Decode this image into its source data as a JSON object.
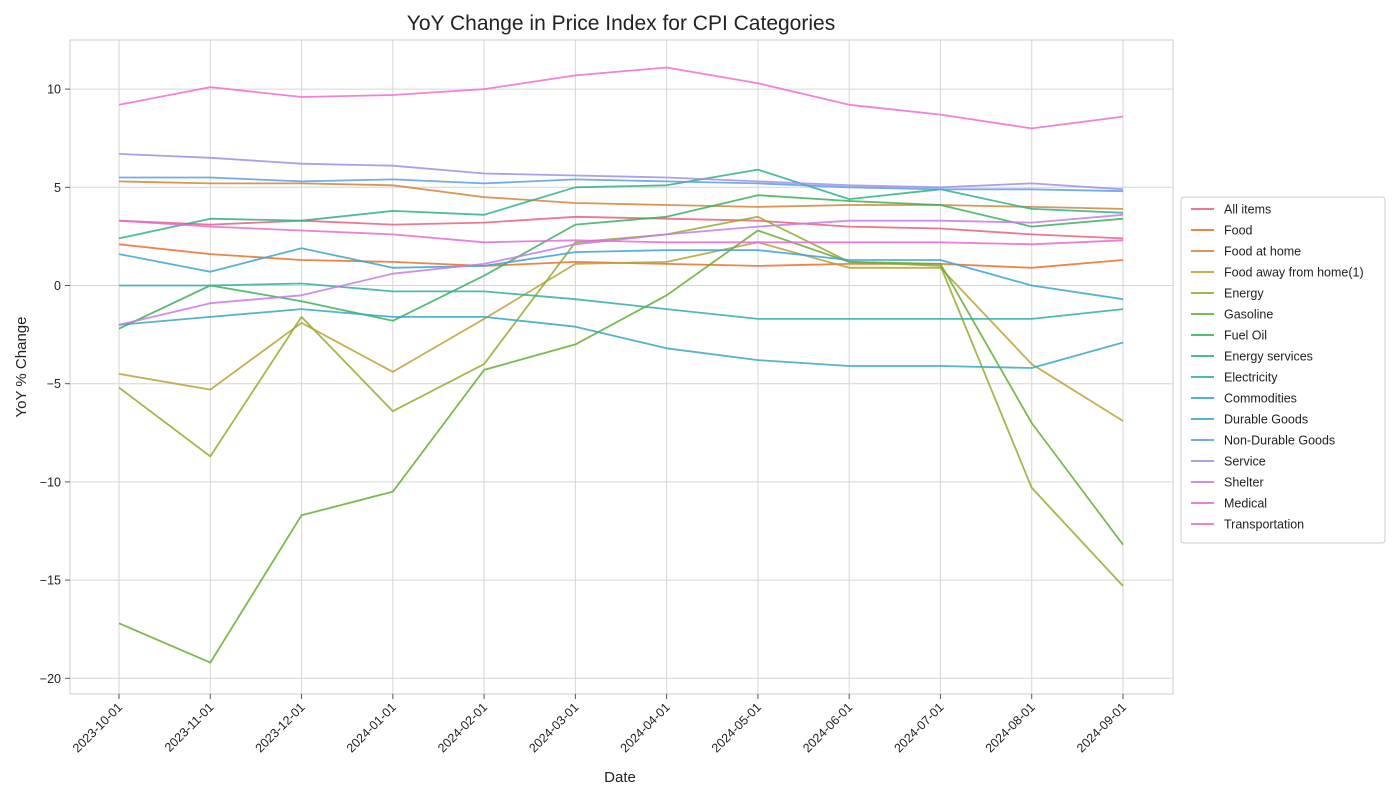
{
  "chart_data": {
    "type": "line",
    "title": "YoY Change in Price Index for CPI Categories",
    "xlabel": "Date",
    "ylabel": "YoY % Change",
    "ylim": [
      -20.8,
      12.5
    ],
    "yticks": [
      10,
      5,
      0,
      -5,
      -10,
      -15,
      -20
    ],
    "ytick_labels": [
      "10",
      "5",
      "0",
      "−5",
      "−10",
      "−15",
      "−20"
    ],
    "grid": true,
    "legend_position": "right-center",
    "x": [
      "2023-10-01",
      "2023-11-01",
      "2023-12-01",
      "2024-01-01",
      "2024-02-01",
      "2024-03-01",
      "2024-04-01",
      "2024-05-01",
      "2024-06-01",
      "2024-07-01",
      "2024-08-01",
      "2024-09-01"
    ],
    "series": [
      {
        "name": "All items",
        "color": "#e8607d",
        "values": [
          3.3,
          3.1,
          3.3,
          3.1,
          3.2,
          3.5,
          3.4,
          3.3,
          3.0,
          2.9,
          2.6,
          2.4
        ]
      },
      {
        "name": "Food",
        "color": "#e8702a",
        "values": [
          2.1,
          1.6,
          1.3,
          1.2,
          1.0,
          1.2,
          1.1,
          1.0,
          1.1,
          1.1,
          0.9,
          1.3
        ]
      },
      {
        "name": "Food at home",
        "color": "#d4843a",
        "values": [
          5.3,
          5.2,
          5.2,
          5.1,
          4.5,
          4.2,
          4.1,
          4.0,
          4.1,
          4.1,
          4.0,
          3.9
        ]
      },
      {
        "name": "Food away from home(1)",
        "color": "#b9a135",
        "values": [
          -4.5,
          -5.3,
          -1.9,
          -4.4,
          -1.7,
          1.1,
          1.2,
          2.2,
          0.9,
          0.9,
          -4.0,
          -6.9
        ]
      },
      {
        "name": "Energy",
        "color": "#93aa2f",
        "values": [
          -5.2,
          -8.7,
          -1.6,
          -6.4,
          -4.0,
          2.2,
          2.6,
          3.5,
          1.2,
          1.0,
          -10.3,
          -15.3
        ]
      },
      {
        "name": "Gasoline",
        "color": "#65ad32",
        "values": [
          -17.2,
          -19.2,
          -11.7,
          -10.5,
          -4.3,
          -3.0,
          -0.5,
          2.8,
          1.2,
          1.1,
          -7.0,
          -13.2
        ]
      },
      {
        "name": "Fuel Oil",
        "color": "#3ab05d",
        "values": [
          -2.2,
          0.0,
          -0.8,
          -1.8,
          0.5,
          3.1,
          3.5,
          4.6,
          4.3,
          4.1,
          3.0,
          3.4
        ]
      },
      {
        "name": "Energy services",
        "color": "#2fb08a",
        "values": [
          2.4,
          3.4,
          3.3,
          3.8,
          3.6,
          5.0,
          5.1,
          5.9,
          4.4,
          4.9,
          3.9,
          3.7
        ]
      },
      {
        "name": "Electricity",
        "color": "#33ada8",
        "values": [
          0.0,
          0.0,
          0.1,
          -0.3,
          -0.3,
          -0.7,
          -1.2,
          -1.7,
          -1.7,
          -1.7,
          -1.7,
          -1.2
        ]
      },
      {
        "name": "Commodities",
        "color": "#35a8bd",
        "values": [
          -2.0,
          -1.6,
          -1.2,
          -1.6,
          -1.6,
          -2.1,
          -3.2,
          -3.8,
          -4.1,
          -4.1,
          -4.2,
          -2.9
        ]
      },
      {
        "name": "Durable Goods",
        "color": "#3aa3d4",
        "values": [
          1.6,
          0.7,
          1.9,
          0.9,
          1.0,
          1.7,
          1.8,
          1.8,
          1.3,
          1.3,
          0.0,
          -0.7
        ]
      },
      {
        "name": "Non-Durable Goods",
        "color": "#5c9ce8",
        "values": [
          5.5,
          5.5,
          5.3,
          5.4,
          5.2,
          5.4,
          5.3,
          5.2,
          5.0,
          4.9,
          4.9,
          4.8
        ]
      },
      {
        "name": "Service",
        "color": "#a08ee8",
        "values": [
          6.7,
          6.5,
          6.2,
          6.1,
          5.7,
          5.6,
          5.5,
          5.3,
          5.1,
          5.0,
          5.2,
          4.9
        ]
      },
      {
        "name": "Shelter",
        "color": "#c57ae8",
        "values": [
          -2.0,
          -0.9,
          -0.5,
          0.6,
          1.1,
          2.1,
          2.6,
          3.0,
          3.3,
          3.3,
          3.2,
          3.6
        ]
      },
      {
        "name": "Medical",
        "color": "#e66ad4",
        "values": [
          3.3,
          3.0,
          2.8,
          2.6,
          2.2,
          2.3,
          2.2,
          2.2,
          2.2,
          2.2,
          2.1,
          2.3
        ]
      },
      {
        "name": "Transportation",
        "color": "#f06ccf",
        "values": [
          9.2,
          10.1,
          9.6,
          9.7,
          10.0,
          10.7,
          11.1,
          10.3,
          9.2,
          8.7,
          8.0,
          8.6
        ]
      }
    ]
  }
}
